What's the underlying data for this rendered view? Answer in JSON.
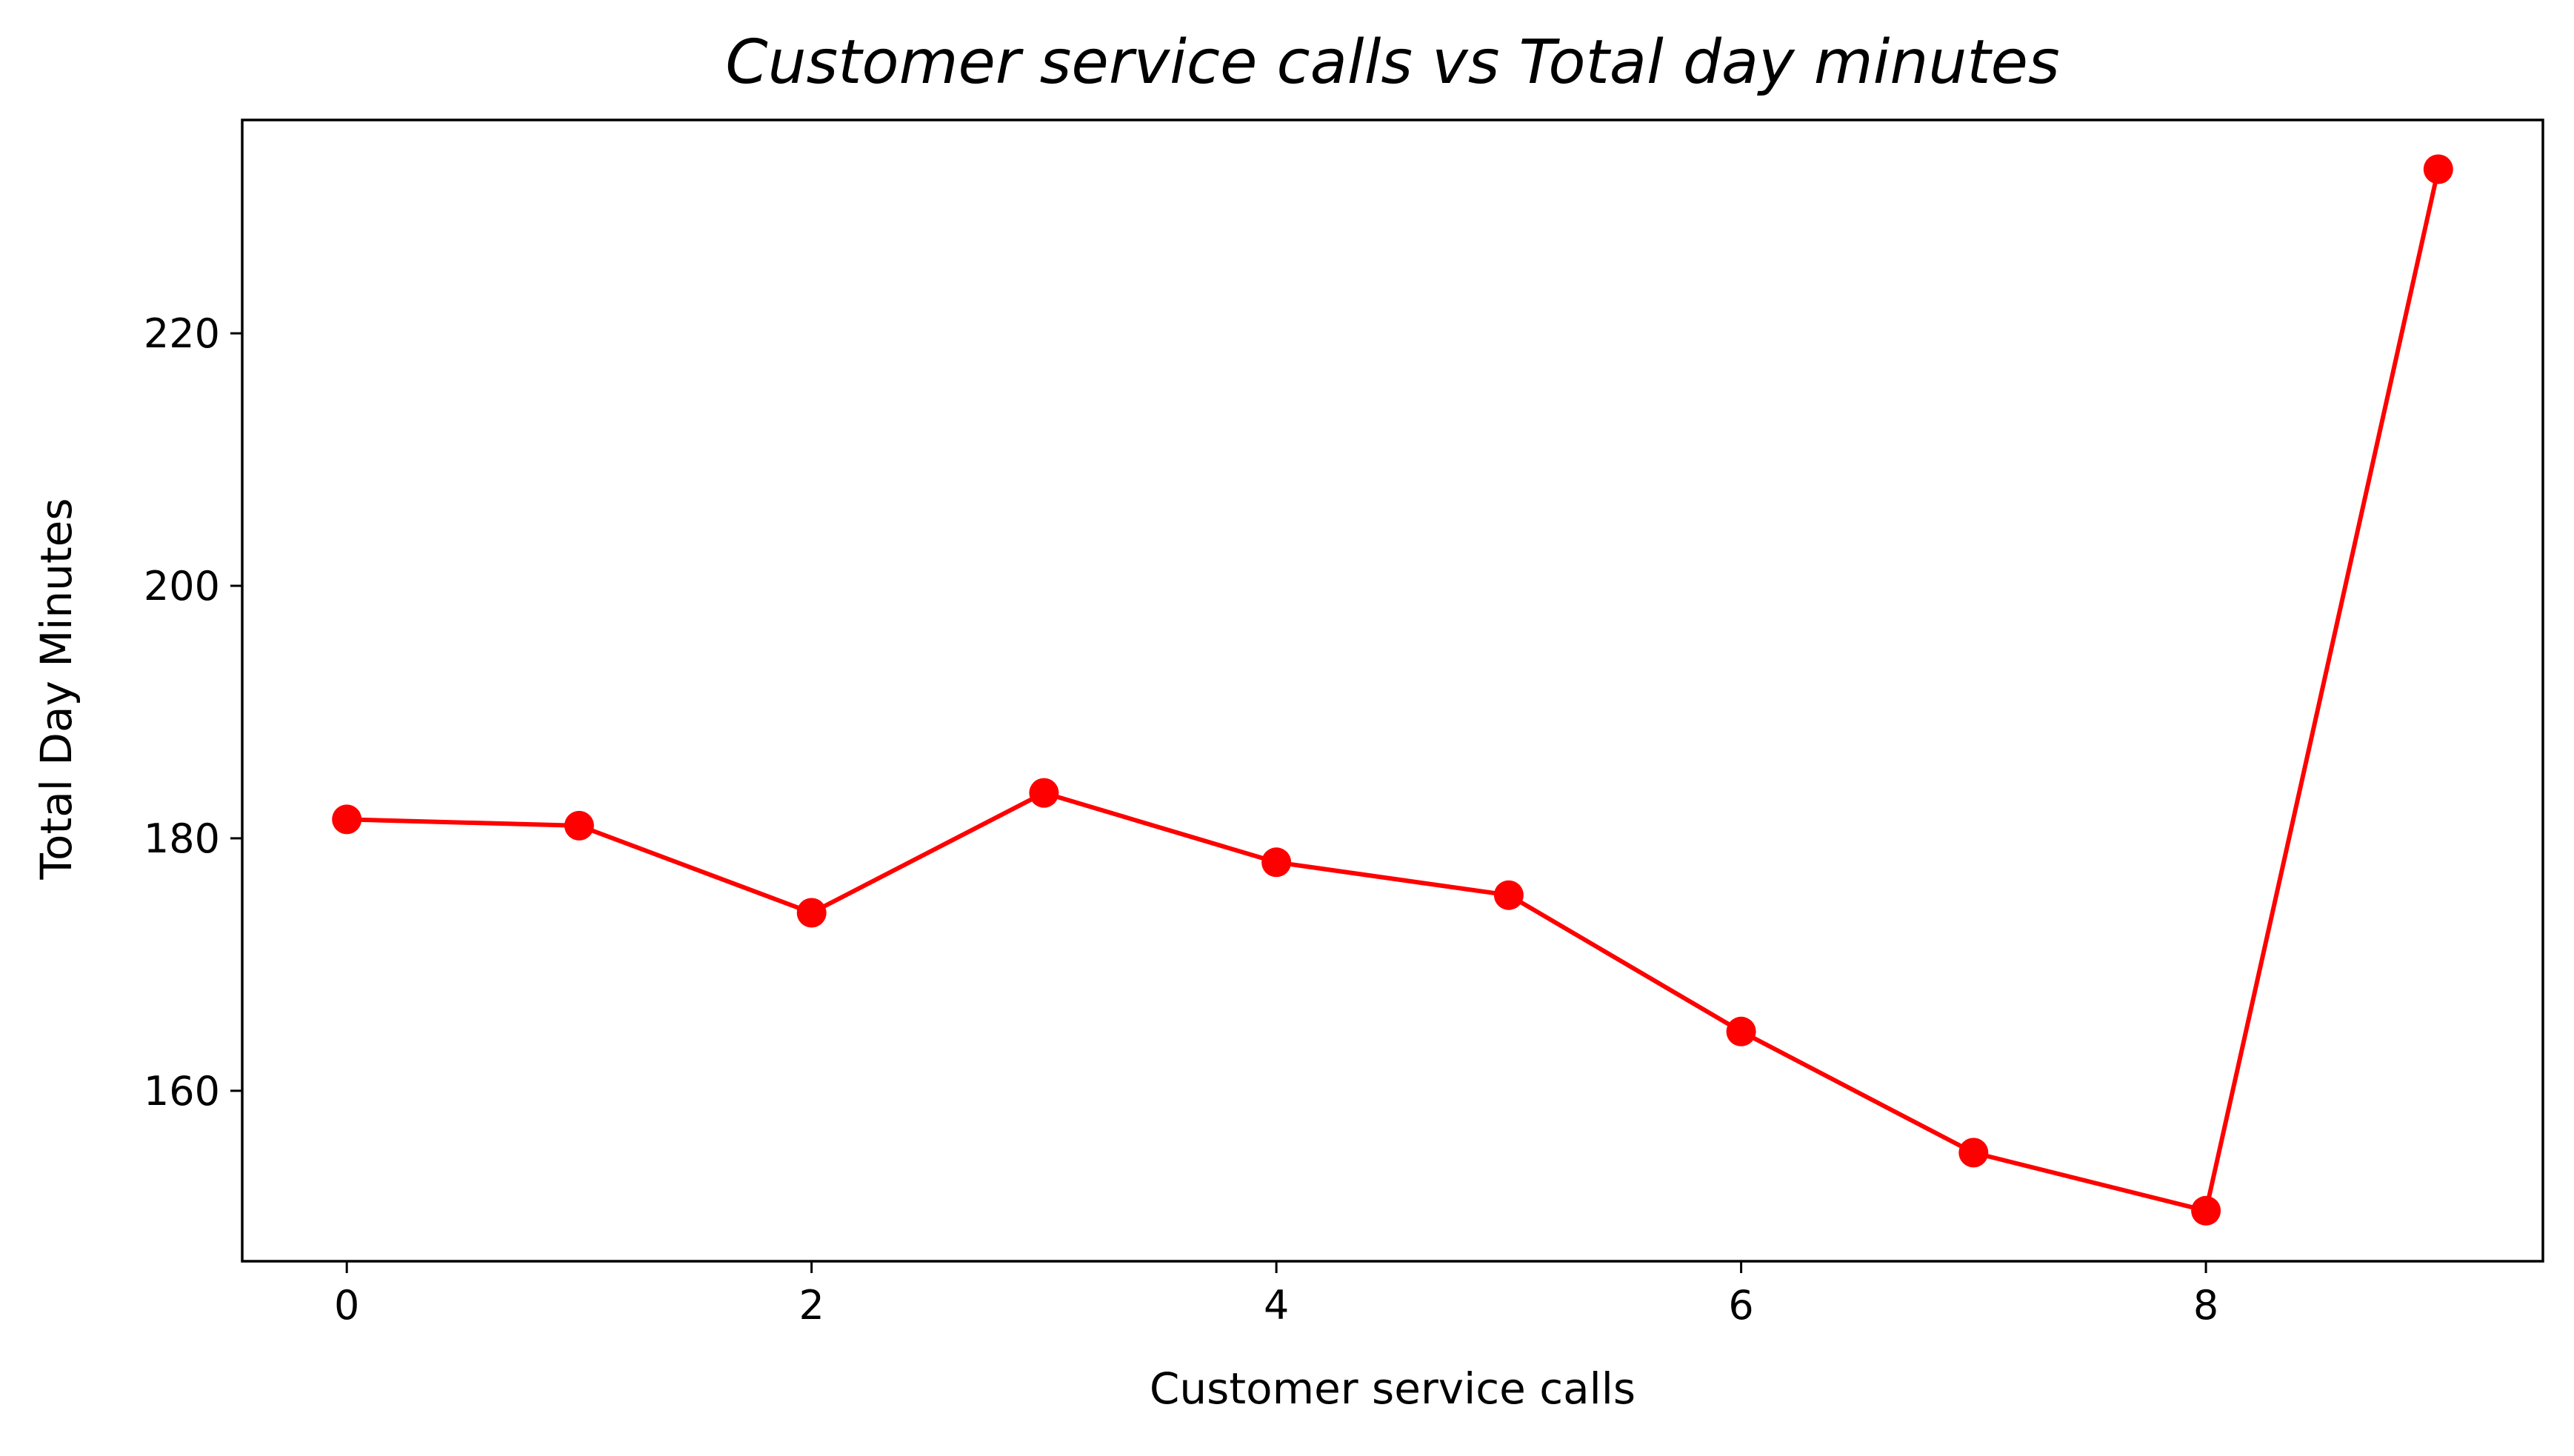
{
  "chart_data": {
    "type": "line",
    "title": "Customer service calls vs Total day minutes",
    "xlabel": "Customer service calls",
    "ylabel": "Total Day Minutes",
    "x": [
      0,
      1,
      2,
      3,
      4,
      5,
      6,
      7,
      8,
      9
    ],
    "series": [
      {
        "values": [
          181.5,
          181.0,
          174.1,
          183.6,
          178.1,
          175.5,
          164.7,
          155.1,
          150.5,
          233.0
        ],
        "color": "#ff0000",
        "marker": "circle"
      }
    ],
    "xlim": [
      -0.45,
      9.45
    ],
    "ylim": [
      146.5,
      236.9
    ],
    "xticks": [
      0,
      2,
      4,
      6,
      8
    ],
    "yticks": [
      160,
      180,
      200,
      220
    ],
    "grid": false,
    "legend": "none"
  }
}
